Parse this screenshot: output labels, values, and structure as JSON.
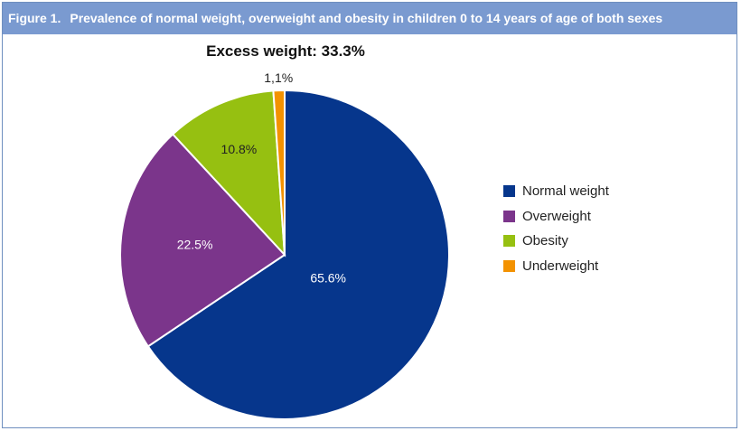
{
  "header": {
    "figure_label": "Figure 1.",
    "title": "Prevalence of normal weight, overweight and obesity in children 0 to 14 years of age of both sexes"
  },
  "chart_data": {
    "type": "pie",
    "title": "Excess weight: 33.3%",
    "slices": [
      {
        "name": "Normal weight",
        "value": 65.6,
        "label": "65.6%",
        "color": "#06368c"
      },
      {
        "name": "Overweight",
        "value": 22.5,
        "label": "22.5%",
        "color": "#7b358b"
      },
      {
        "name": "Obesity",
        "value": 10.8,
        "label": "10.8%",
        "color": "#96c011"
      },
      {
        "name": "Underweight",
        "value": 1.1,
        "label": "1,1%",
        "color": "#f39200"
      }
    ],
    "start": "12 o'clock",
    "direction": "clockwise",
    "legend_position": "right"
  }
}
